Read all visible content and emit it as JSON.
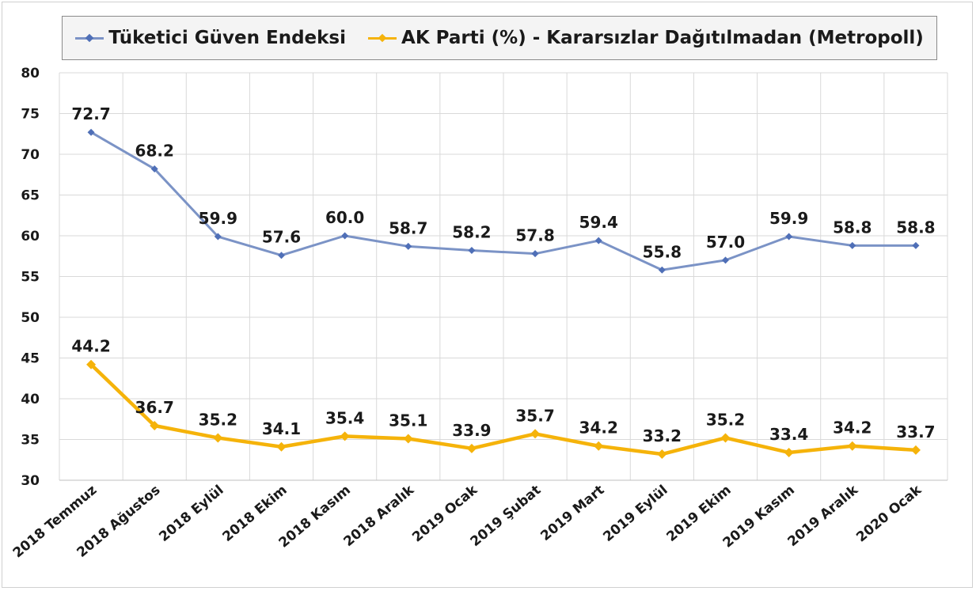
{
  "legend": {
    "series1": "Tüketici Güven Endeksi",
    "series2": "AK Parti (%) - Kararsızlar Dağıtılmadan (Metropoll)"
  },
  "colors": {
    "series1": "#7b93c6",
    "series1_marker": "#4f6fb7",
    "series2": "#f5b30a",
    "grid": "#d9d9d9",
    "text": "#1a1a1a"
  },
  "chart_data": {
    "type": "line",
    "categories": [
      "2018 Temmuz",
      "2018 Ağustos",
      "2018 Eylül",
      "2018 Ekim",
      "2018 Kasım",
      "2018 Aralık",
      "2019 Ocak",
      "2019 Şubat",
      "2019 Mart",
      "2019 Eylül",
      "2019 Ekim",
      "2019 Kasım",
      "2019 Aralık",
      "2020 Ocak"
    ],
    "series": [
      {
        "name": "Tüketici Güven Endeksi",
        "values": [
          72.7,
          68.2,
          59.9,
          57.6,
          60.0,
          58.7,
          58.2,
          57.8,
          59.4,
          55.8,
          57.0,
          59.9,
          58.8,
          58.8
        ]
      },
      {
        "name": "AK Parti (%) - Kararsızlar Dağıtılmadan (Metropoll)",
        "values": [
          44.2,
          36.7,
          35.2,
          34.1,
          35.4,
          35.1,
          33.9,
          35.7,
          34.2,
          33.2,
          35.2,
          33.4,
          34.2,
          33.7
        ]
      }
    ],
    "ylim": [
      30,
      80
    ],
    "yticks": [
      30,
      35,
      40,
      45,
      50,
      55,
      60,
      65,
      70,
      75,
      80
    ],
    "grid": true,
    "legend_position": "top",
    "data_labels": true
  }
}
